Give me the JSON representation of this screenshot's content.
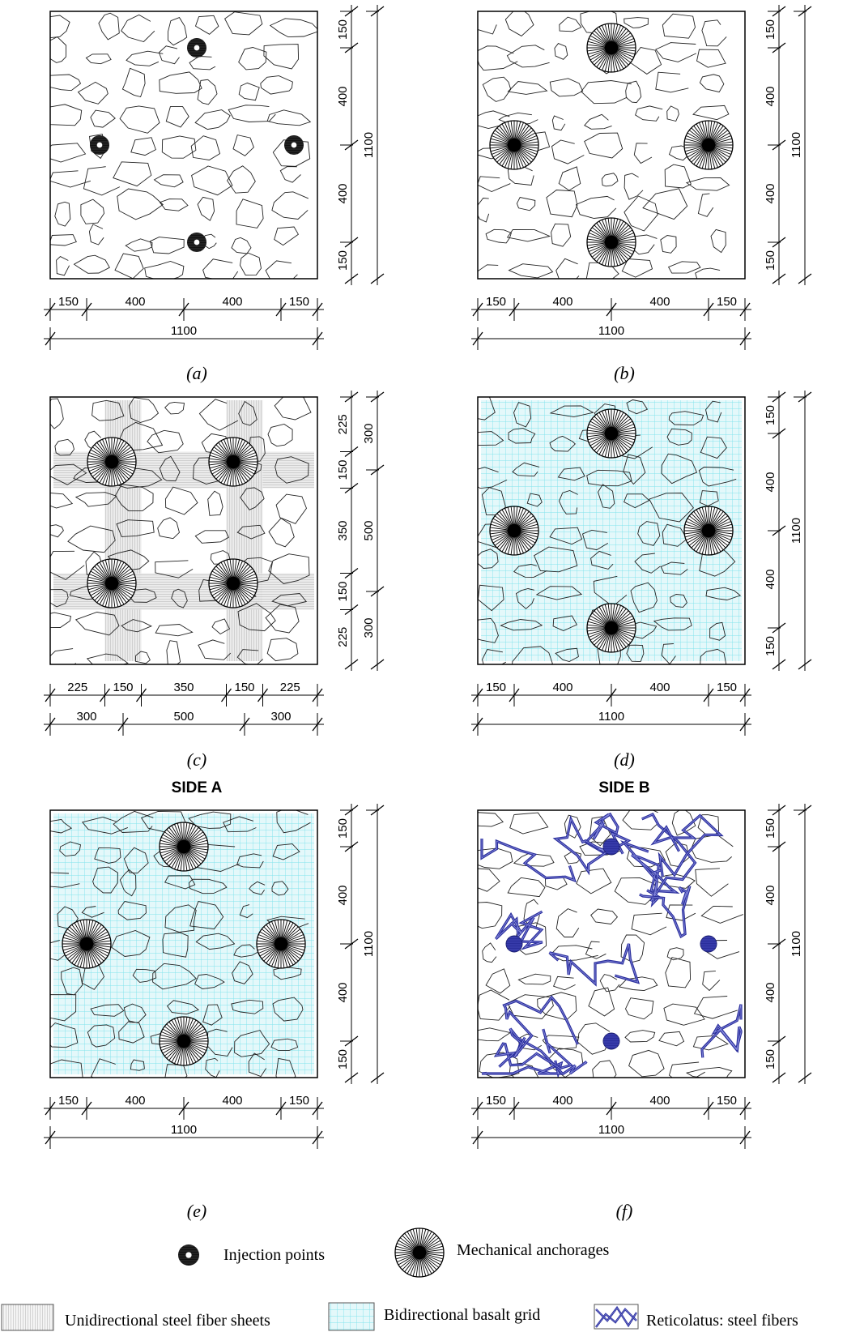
{
  "panels": [
    {
      "id": "a",
      "caption": "(a)",
      "anchor_type": "injection",
      "bottom_dims": [
        "150",
        "400",
        "400",
        "150"
      ],
      "bottom_total": "1100",
      "right_dims": [
        "150",
        "400",
        "400",
        "150"
      ],
      "right_total": "1100"
    },
    {
      "id": "b",
      "caption": "(b)",
      "anchor_type": "mechanical",
      "bottom_dims": [
        "150",
        "400",
        "400",
        "150"
      ],
      "bottom_total": "1100",
      "right_dims": [
        "150",
        "400",
        "400",
        "150"
      ],
      "right_total": "1100"
    },
    {
      "id": "c",
      "caption": "(c)",
      "anchor_type": "mechanical",
      "reinforcement": "steel-sheets",
      "bottom_dims": [
        "225",
        "150",
        "350",
        "150",
        "225"
      ],
      "bottom_dims2": [
        "300",
        "500",
        "300"
      ],
      "right_dims": [
        "225",
        "150",
        "350",
        "150",
        "225"
      ],
      "right_dims2": [
        "300",
        "500",
        "300"
      ]
    },
    {
      "id": "d",
      "caption": "(d)",
      "anchor_type": "mechanical",
      "reinforcement": "basalt-grid",
      "bottom_dims": [
        "150",
        "400",
        "400",
        "150"
      ],
      "bottom_total": "1100",
      "right_dims": [
        "150",
        "400",
        "400",
        "150"
      ],
      "right_total": "1100"
    },
    {
      "id": "e",
      "caption": "(e)",
      "anchor_type": "mechanical",
      "reinforcement": "basalt-grid",
      "bottom_dims": [
        "150",
        "400",
        "400",
        "150"
      ],
      "bottom_total": "1100",
      "right_dims": [
        "150",
        "400",
        "400",
        "150"
      ],
      "right_total": "1100"
    },
    {
      "id": "f",
      "caption": "(f)",
      "anchor_type": "injection-blue",
      "reinforcement": "reticolatus",
      "bottom_dims": [
        "150",
        "400",
        "400",
        "150"
      ],
      "bottom_total": "1100",
      "right_dims": [
        "150",
        "400",
        "400",
        "150"
      ],
      "right_total": "1100"
    }
  ],
  "side_labels": {
    "left": "SIDE A",
    "right": "SIDE B"
  },
  "legend": {
    "injection_points": "Injection points",
    "mechanical_anchorages": "Mechanical anchorages",
    "steel_fiber_sheets": "Unidirectional steel fiber sheets",
    "basalt_grid": "Bidirectional basalt grid",
    "reticolatus": "Reticolatus: steel fibers"
  },
  "colors": {
    "basalt_grid": "#7fe3ec",
    "basalt_fill": "#dff7fa",
    "steel_sheet": "#c8c8c8",
    "reticolatus": "#2b2f9c",
    "line": "#222222"
  }
}
